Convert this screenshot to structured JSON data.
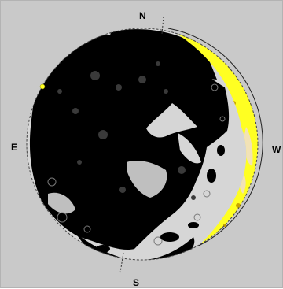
{
  "compass": {
    "north": "N",
    "south": "S",
    "east": "E",
    "west": "W"
  },
  "moon": {
    "phase": "waning crescent",
    "illuminated_limb": "west",
    "colors": {
      "background": "#c9c9c9",
      "night_side": "#000000",
      "day_side": "#ffff22",
      "highland": "#d6d6d6",
      "day_highland": "#f2e2b6",
      "limb_outline": "#444444"
    }
  }
}
